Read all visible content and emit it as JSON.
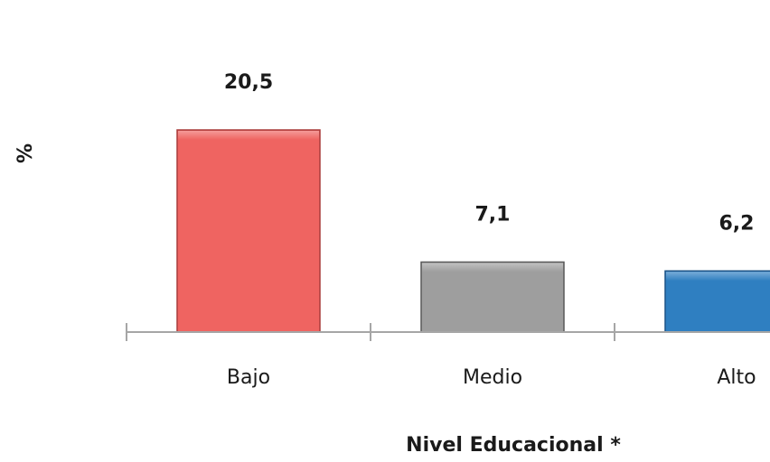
{
  "chart_data": {
    "type": "bar",
    "categories": [
      "Bajo",
      "Medio",
      "Alto"
    ],
    "values": [
      20.5,
      7.1,
      6.2
    ],
    "data_labels": [
      "20,5",
      "7,1",
      "6,2"
    ],
    "xlabel": "Nivel Educacional *",
    "ylabel": "%",
    "ylim": [
      0,
      20.5
    ],
    "grid": false,
    "colors": [
      "#ef6461",
      "#9e9e9e",
      "#2f7fc1"
    ],
    "edge_colors": [
      "#a83b3a",
      "#5a5a5a",
      "#1d5487"
    ]
  }
}
